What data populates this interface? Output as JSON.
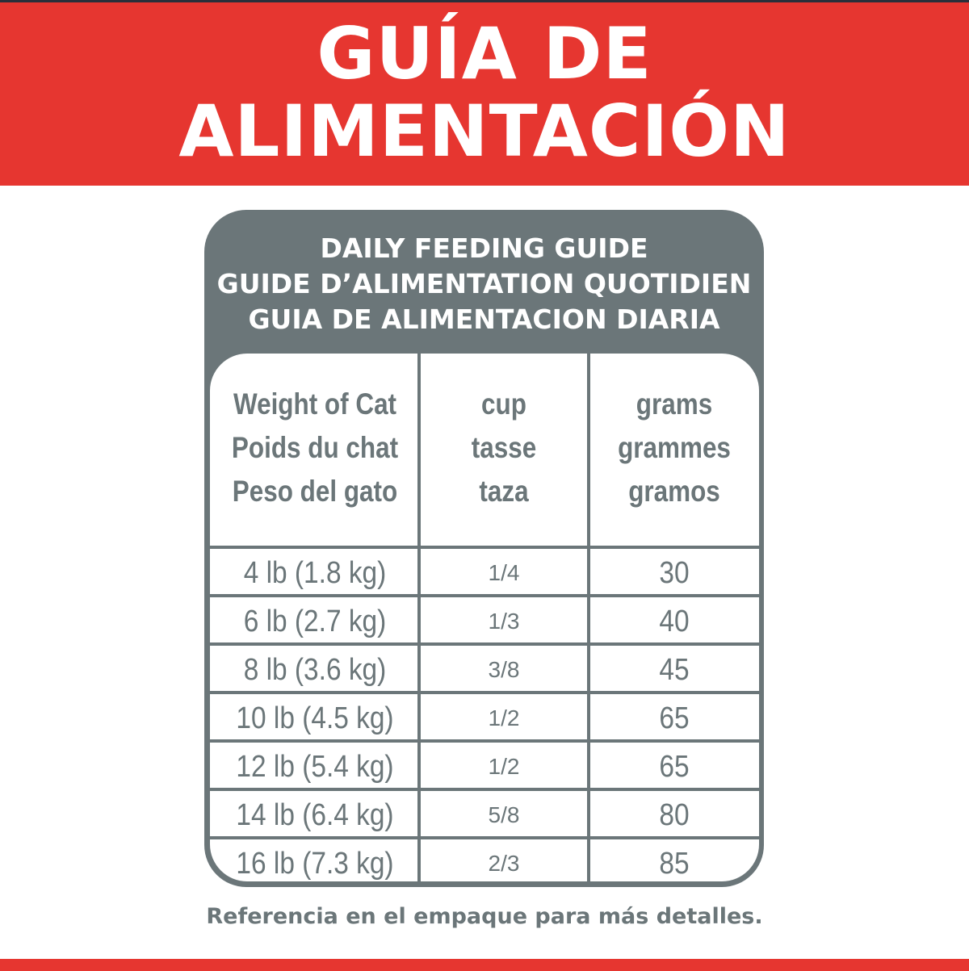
{
  "banner": {
    "line1": "GUÍA DE",
    "line2": "ALIMENTACIÓN",
    "color": "#e63630"
  },
  "card": {
    "titles": [
      "DAILY FEEDING GUIDE",
      "GUIDE D’ALIMENTATION QUOTIDIEN",
      "GUIA DE ALIMENTACION DIARIA"
    ],
    "color": "#6b7679"
  },
  "table": {
    "headers": [
      [
        "Weight of Cat",
        "Poids du chat",
        "Peso del gato"
      ],
      [
        "cup",
        "tasse",
        "taza"
      ],
      [
        "grams",
        "grammes",
        "gramos"
      ]
    ],
    "rows": [
      {
        "weight": "4 lb (1.8 kg)",
        "cup": "1/4",
        "grams": "30"
      },
      {
        "weight": "6 lb (2.7 kg)",
        "cup": "1/3",
        "grams": "40"
      },
      {
        "weight": "8 lb (3.6 kg)",
        "cup": "3/8",
        "grams": "45"
      },
      {
        "weight": "10 lb (4.5 kg)",
        "cup": "1/2",
        "grams": "65"
      },
      {
        "weight": "12 lb (5.4 kg)",
        "cup": "1/2",
        "grams": "65"
      },
      {
        "weight": "14 lb (6.4 kg)",
        "cup": "5/8",
        "grams": "80"
      },
      {
        "weight": "16 lb (7.3 kg)",
        "cup": "2/3",
        "grams": "85"
      }
    ]
  },
  "footer": "Referencia en el empaque para más detalles."
}
